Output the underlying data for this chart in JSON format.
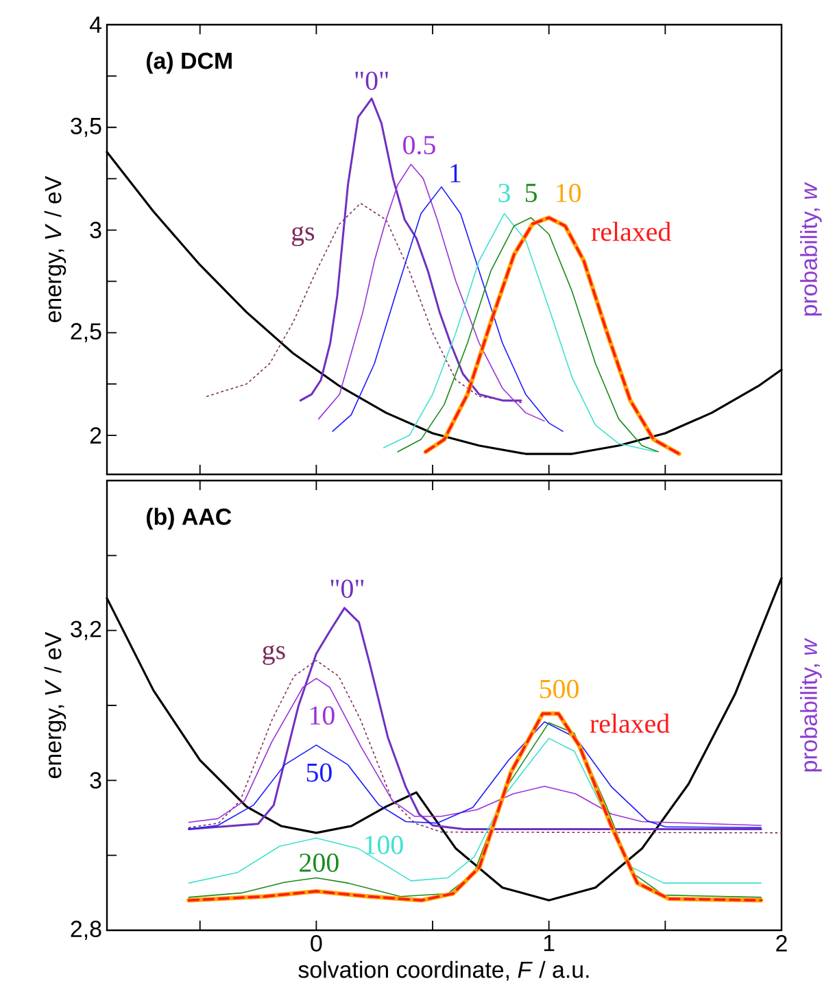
{
  "chart_data": [
    {
      "type": "line",
      "title": "(a) DCM",
      "ylabel": "energy, *V* / eV",
      "y2label": "probability, *w*",
      "xlim": [
        -0.9,
        2
      ],
      "xticks": [
        {
          "value": -0.5,
          "label": null
        },
        0,
        {
          "value": 0.5,
          "label": null
        },
        1,
        {
          "value": 1.5,
          "label": null
        },
        2
      ],
      "ylim": [
        1.81,
        4
      ],
      "yticks": [
        2,
        {
          "value": 2.25,
          "label": null
        },
        {
          "value": 2.5,
          "label": "2,5"
        },
        {
          "value": 2.75,
          "label": null
        },
        3,
        {
          "value": 3.25,
          "label": null
        },
        {
          "value": 3.5,
          "label": "3,5"
        },
        {
          "value": 3.75,
          "label": null
        },
        4
      ],
      "tick_labels": "y",
      "series": [
        {
          "color": "#000000",
          "x": [
            -0.9,
            -0.7,
            -0.5,
            -0.3,
            -0.1,
            0.1,
            0.3,
            0.5,
            0.7,
            0.9,
            1.0,
            1.1,
            1.3,
            1.5,
            1.7,
            1.9,
            2.0
          ],
          "values": [
            3.38,
            3.09,
            2.83,
            2.6,
            2.4,
            2.24,
            2.11,
            2.01,
            1.95,
            1.91,
            1.91,
            1.91,
            1.95,
            2.01,
            2.11,
            2.24,
            2.32
          ]
        },
        {
          "name": "gs",
          "color": "#7b2a5a",
          "line_style": "dotted",
          "x": [
            -0.47,
            -0.3,
            -0.2,
            -0.1,
            0.0,
            0.1,
            0.19,
            0.3,
            0.4,
            0.5,
            0.6,
            0.7,
            0.88
          ],
          "values": [
            2.19,
            2.25,
            2.35,
            2.55,
            2.8,
            3.03,
            3.13,
            3.05,
            2.8,
            2.5,
            2.27,
            2.19,
            2.16
          ]
        },
        {
          "name": "\"0\"",
          "color": "#7030c0",
          "x": [
            -0.068,
            -0.02,
            0.02,
            0.06,
            0.09,
            0.136,
            0.18,
            0.238,
            0.28,
            0.33,
            0.38,
            0.43,
            0.48,
            0.53,
            0.58,
            0.63,
            0.7,
            0.8,
            0.88
          ],
          "values": [
            2.17,
            2.2,
            2.27,
            2.45,
            2.68,
            3.22,
            3.55,
            3.64,
            3.52,
            3.25,
            3.05,
            2.96,
            2.8,
            2.6,
            2.44,
            2.3,
            2.2,
            2.17,
            2.17
          ]
        },
        {
          "name": "0.5",
          "color": "#9b30d9",
          "x": [
            0.01,
            0.1,
            0.2,
            0.25,
            0.3,
            0.35,
            0.407,
            0.46,
            0.52,
            0.6,
            0.7,
            0.8,
            0.9,
            0.98
          ],
          "values": [
            2.08,
            2.2,
            2.6,
            2.85,
            3.05,
            3.22,
            3.32,
            3.25,
            3.05,
            2.75,
            2.45,
            2.23,
            2.11,
            2.07
          ]
        },
        {
          "name": "1",
          "color": "#1a1aff",
          "x": [
            0.07,
            0.15,
            0.25,
            0.35,
            0.45,
            0.538,
            0.62,
            0.7,
            0.8,
            0.9,
            1.0,
            1.06
          ],
          "values": [
            2.02,
            2.1,
            2.35,
            2.72,
            3.08,
            3.21,
            3.08,
            2.8,
            2.45,
            2.2,
            2.06,
            2.02
          ]
        },
        {
          "name": "3",
          "color": "#40e0d0",
          "x": [
            0.29,
            0.4,
            0.5,
            0.6,
            0.7,
            0.808,
            0.9,
            1.0,
            1.1,
            1.2,
            1.3,
            1.46
          ],
          "values": [
            1.94,
            2.0,
            2.2,
            2.5,
            2.85,
            3.08,
            2.95,
            2.62,
            2.28,
            2.05,
            1.96,
            1.92
          ]
        },
        {
          "name": "5",
          "color": "#1a8a1a",
          "x": [
            0.35,
            0.45,
            0.55,
            0.65,
            0.75,
            0.85,
            0.923,
            1.0,
            1.1,
            1.2,
            1.3,
            1.4,
            1.47
          ],
          "values": [
            1.92,
            1.98,
            2.15,
            2.45,
            2.8,
            3.02,
            3.06,
            2.98,
            2.7,
            2.35,
            2.08,
            1.95,
            1.92
          ]
        },
        {
          "name": "10",
          "color": "#ffa500",
          "x": [
            0.47,
            0.55,
            0.65,
            0.75,
            0.85,
            0.93,
            1.0,
            1.07,
            1.15,
            1.25,
            1.35,
            1.45,
            1.56
          ],
          "values": [
            1.92,
            1.98,
            2.2,
            2.55,
            2.88,
            3.03,
            3.06,
            3.02,
            2.85,
            2.5,
            2.17,
            1.98,
            1.91
          ]
        },
        {
          "name": "relaxed",
          "color": "#ff1a1a",
          "line_style": "dashed",
          "x": [
            0.47,
            0.55,
            0.65,
            0.75,
            0.85,
            0.93,
            1.0,
            1.07,
            1.15,
            1.25,
            1.35,
            1.45,
            1.56
          ],
          "values": [
            1.92,
            1.98,
            2.2,
            2.55,
            2.88,
            3.03,
            3.06,
            3.02,
            2.85,
            2.5,
            2.17,
            1.98,
            1.91
          ]
        }
      ]
    },
    {
      "type": "line",
      "title": "(b) AAC",
      "xlabel": "solvation coordinate, *F* / a.u.",
      "ylabel": "energy, *V* / eV",
      "y2label": "probability, *w*",
      "xlim": [
        -0.9,
        2
      ],
      "xticks": [
        {
          "value": -0.5,
          "label": null
        },
        0,
        {
          "value": 0.5,
          "label": null
        },
        1,
        {
          "value": 1.5,
          "label": null
        },
        2
      ],
      "ylim": [
        2.8,
        3.4
      ],
      "yticks": [
        {
          "value": 2.8,
          "label": "2,8"
        },
        {
          "value": 2.9,
          "label": null
        },
        3,
        {
          "value": 3.1,
          "label": null
        },
        {
          "value": 3.2,
          "label": "3,2"
        },
        {
          "value": 3.3,
          "label": null
        }
      ],
      "series": [
        {
          "color": "#000000",
          "x": [
            -0.9,
            -0.7,
            -0.5,
            -0.3,
            -0.15,
            0,
            0.15,
            0.3,
            0.43,
            0.6,
            0.8,
            1,
            1.2,
            1.4,
            1.6,
            1.8,
            2.0
          ],
          "values": [
            3.243,
            3.12,
            3.027,
            2.965,
            2.939,
            2.93,
            2.939,
            2.965,
            2.984,
            2.909,
            2.857,
            2.84,
            2.857,
            2.909,
            2.995,
            3.115,
            3.27
          ]
        },
        {
          "name": "gs",
          "color": "#7b2a5a",
          "line_style": "dotted",
          "x": [
            -0.548,
            -0.42,
            -0.327,
            -0.19,
            -0.096,
            0,
            0.096,
            0.19,
            0.327,
            0.423,
            0.538,
            2.0
          ],
          "values": [
            2.937,
            2.943,
            2.973,
            3.081,
            3.139,
            3.16,
            3.139,
            3.081,
            2.973,
            2.943,
            2.931,
            2.93
          ]
        },
        {
          "name": "\"0\"",
          "color": "#7030c0",
          "x": [
            -0.548,
            -0.25,
            -0.183,
            -0.077,
            0,
            0.058,
            0.121,
            0.183,
            0.231,
            0.308,
            0.385,
            0.442,
            0.5,
            0.635,
            1.912
          ],
          "values": [
            2.935,
            2.942,
            2.967,
            3.099,
            3.169,
            3.199,
            3.23,
            3.211,
            3.154,
            3.057,
            2.991,
            2.955,
            2.94,
            2.935,
            2.935
          ]
        },
        {
          "name": "10",
          "color": "#9b30d9",
          "x": [
            -0.548,
            -0.423,
            -0.308,
            -0.192,
            -0.058,
            0,
            0.058,
            0.192,
            0.327,
            0.423,
            0.538,
            0.692,
            0.846,
            0.981,
            1.115,
            1.27,
            1.4,
            1.912
          ],
          "values": [
            2.944,
            2.949,
            2.973,
            3.051,
            3.124,
            3.136,
            3.124,
            3.045,
            2.973,
            2.952,
            2.952,
            2.961,
            2.982,
            2.992,
            2.982,
            2.955,
            2.945,
            2.94
          ]
        },
        {
          "name": "50",
          "color": "#1a1aff",
          "x": [
            -0.548,
            -0.423,
            -0.27,
            -0.135,
            0,
            0.135,
            0.27,
            0.385,
            0.519,
            0.673,
            0.827,
            0.981,
            1.115,
            1.27,
            1.423,
            1.5,
            1.912
          ],
          "values": [
            2.935,
            2.94,
            2.967,
            3.021,
            3.047,
            3.021,
            2.967,
            2.945,
            2.943,
            2.964,
            3.027,
            3.078,
            3.057,
            2.991,
            2.946,
            2.938,
            2.937
          ]
        },
        {
          "name": "100",
          "color": "#40e0d0",
          "x": [
            -0.548,
            -0.339,
            -0.158,
            0,
            0.181,
            0.407,
            0.566,
            0.679,
            0.814,
            1,
            1.109,
            1.244,
            1.357,
            1.493,
            1.912
          ],
          "values": [
            2.863,
            2.877,
            2.912,
            2.923,
            2.909,
            2.866,
            2.87,
            2.898,
            2.982,
            3.056,
            3.039,
            2.954,
            2.884,
            2.863,
            2.863
          ]
        },
        {
          "name": "200",
          "color": "#1a8a1a",
          "x": [
            -0.548,
            -0.317,
            -0.136,
            0,
            0.136,
            0.362,
            0.566,
            0.679,
            0.814,
            1,
            1.109,
            1.244,
            1.357,
            1.493,
            1.912
          ],
          "values": [
            2.844,
            2.85,
            2.864,
            2.87,
            2.863,
            2.845,
            2.849,
            2.877,
            2.989,
            3.077,
            3.063,
            2.968,
            2.877,
            2.847,
            2.844
          ]
        },
        {
          "name": "500",
          "color": "#ffa500",
          "x": [
            -0.548,
            -0.226,
            0,
            0.226,
            0.452,
            0.588,
            0.701,
            0.837,
            0.973,
            1.041,
            1.131,
            1.267,
            1.38,
            1.516,
            1.912
          ],
          "values": [
            2.84,
            2.845,
            2.852,
            2.845,
            2.84,
            2.849,
            2.884,
            3.011,
            3.089,
            3.089,
            3.046,
            2.94,
            2.863,
            2.842,
            2.84
          ]
        },
        {
          "name": "relaxed",
          "color": "#ff1a1a",
          "line_style": "dashed",
          "x": [
            -0.548,
            -0.226,
            0,
            0.226,
            0.452,
            0.588,
            0.701,
            0.837,
            0.973,
            1.041,
            1.131,
            1.267,
            1.38,
            1.516,
            1.912
          ],
          "values": [
            2.84,
            2.845,
            2.852,
            2.845,
            2.84,
            2.849,
            2.884,
            3.011,
            3.089,
            3.089,
            3.046,
            2.94,
            2.863,
            2.842,
            2.84
          ]
        }
      ]
    }
  ]
}
